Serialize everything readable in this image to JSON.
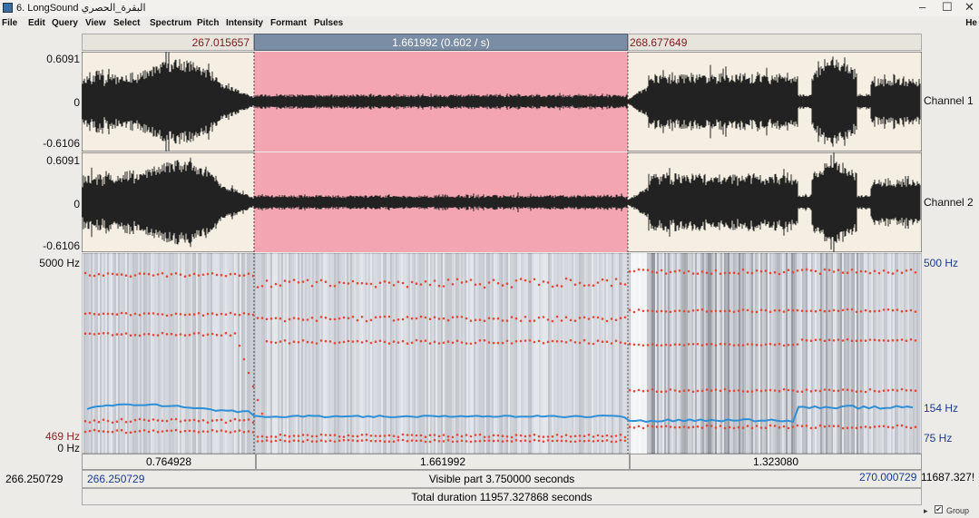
{
  "window": {
    "title": "6. LongSound البقرة_الحصري",
    "minimize": "–",
    "maximize": "☐",
    "close": "✕"
  },
  "menu": {
    "items": [
      "File",
      "Edit",
      "Query",
      "View",
      "Select",
      "Spectrum",
      "Pitch",
      "Intensity",
      "Formant",
      "Pulses"
    ],
    "help": "He"
  },
  "selection": {
    "start": "267.015657",
    "length": "1.661992 (0.602 / s)",
    "end": "268.677649"
  },
  "channels": {
    "ch1": {
      "max": "0.6091",
      "zero": "0",
      "min": "-0.6106",
      "name": "Channel 1"
    },
    "ch2": {
      "max": "0.6091",
      "zero": "0",
      "min": "-0.6106",
      "name": "Channel 2"
    }
  },
  "spectrogram": {
    "top_left": "5000 Hz",
    "cursor_hz": "469 Hz",
    "bottom_left": "0 Hz",
    "top_right": "500 Hz",
    "pitch_mark": "154 Hz",
    "bottom_right": "75 Hz"
  },
  "durations": {
    "left": "0.764928",
    "mid": "1.661992",
    "right": "1.323080"
  },
  "visible": {
    "window_start": "266.250729",
    "start": "266.250729",
    "label": "Visible part 3.750000 seconds",
    "end": "270.000729",
    "window_end": "11687.327!"
  },
  "total": {
    "label": "Total duration 11957.327868 seconds"
  },
  "bottom": {
    "group_label": "Group"
  },
  "colors": {
    "selection_wave": "#f3a6b2",
    "selection_header": "#7b8da4",
    "formant": "#e24a3a",
    "pitch": "#2e8fd6"
  }
}
